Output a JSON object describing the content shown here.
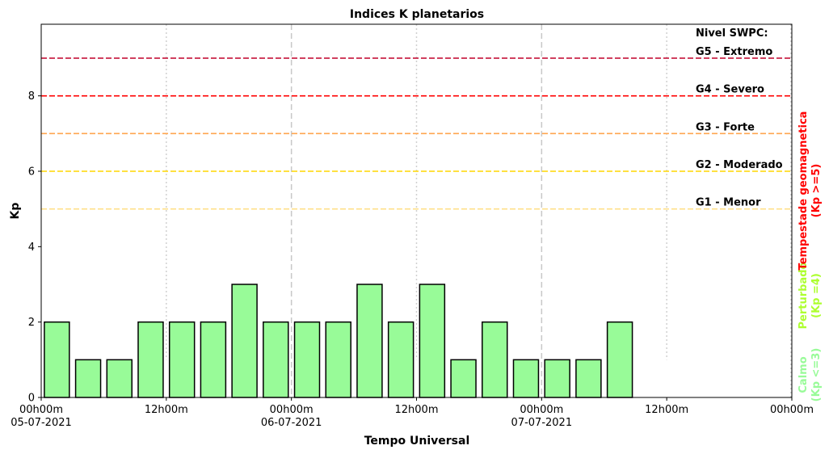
{
  "chart_data": {
    "type": "bar",
    "title": "Indices K planetarios",
    "xlabel": "Tempo Universal",
    "ylabel": "Kp",
    "ylim": [
      0,
      9.9
    ],
    "xlim_hours": [
      0,
      72
    ],
    "yticks": [
      "0",
      "2",
      "4",
      "6",
      "8"
    ],
    "xticks": [
      {
        "line1": "00h00m",
        "line2": "05-07-2021",
        "hours": 0
      },
      {
        "line1": "12h00m",
        "line2": "",
        "hours": 12
      },
      {
        "line1": "00h00m",
        "line2": "06-07-2021",
        "hours": 24
      },
      {
        "line1": "12h00m",
        "line2": "",
        "hours": 36
      },
      {
        "line1": "00h00m",
        "line2": "07-07-2021",
        "hours": 48
      },
      {
        "line1": "12h00m",
        "line2": "",
        "hours": 60
      },
      {
        "line1": "00h00m",
        "line2": "",
        "hours": 72
      }
    ],
    "interval_hours": 3,
    "bar_color": "#98fb98",
    "values": [
      2,
      1,
      1,
      2,
      2,
      2,
      3,
      2,
      2,
      2,
      3,
      2,
      3,
      1,
      2,
      1,
      1,
      1,
      2
    ],
    "levels_heading": "Nivel SWPC:",
    "levels": [
      {
        "label": "G1 - Menor",
        "kp": 5,
        "color": "#ffe08a"
      },
      {
        "label": "G2 - Moderado",
        "kp": 6,
        "color": "#ffd700"
      },
      {
        "label": "G3 - Forte",
        "kp": 7,
        "color": "#ffa54f"
      },
      {
        "label": "G4 - Severo",
        "kp": 8,
        "color": "#ff0000"
      },
      {
        "label": "G5 - Extremo",
        "kp": 9,
        "color": "#c0002a"
      }
    ],
    "side_labels": [
      {
        "line1": "Calmo",
        "line2": "(Kp <=3)",
        "color": "#98fb98"
      },
      {
        "line1": "Perturbado",
        "line2": "(Kp =4)",
        "color": "#adff2f"
      },
      {
        "line1": "Tempestade geomagnetica",
        "line2": "(Kp >=5)",
        "color": "#ff0000"
      }
    ]
  }
}
